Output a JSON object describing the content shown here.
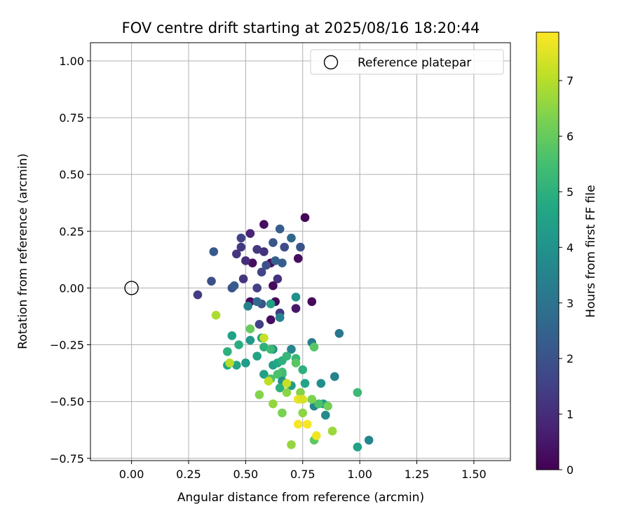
{
  "chart_data": {
    "type": "scatter",
    "title": "FOV centre drift starting at 2025/08/16 18:20:44",
    "xlabel": "Angular distance from reference (arcmin)",
    "ylabel": "Rotation from reference (arcmin)",
    "xlim": [
      -0.18,
      1.66
    ],
    "ylim": [
      -0.76,
      1.08
    ],
    "xticks": [
      "0.00",
      "0.25",
      "0.50",
      "0.75",
      "1.00",
      "1.25",
      "1.50"
    ],
    "xtick_values": [
      0,
      0.25,
      0.5,
      0.75,
      1.0,
      1.25,
      1.5
    ],
    "yticks": [
      "1.00",
      "0.75",
      "0.50",
      "0.25",
      "0.00",
      "−0.25",
      "−0.50",
      "−0.75"
    ],
    "ytick_values": [
      1.0,
      0.75,
      0.5,
      0.25,
      0.0,
      -0.25,
      -0.5,
      -0.75
    ],
    "grid": true,
    "legend": {
      "placement": "top-right",
      "entries": [
        {
          "label": "Reference platepar",
          "marker": "open-circle"
        }
      ]
    },
    "reference_point": {
      "x": 0.0,
      "y": 0.0
    },
    "colorbar": {
      "label": "Hours from first FF file",
      "colormap": "viridis",
      "range": [
        0,
        7.87
      ],
      "ticks": [
        "0",
        "1",
        "2",
        "3",
        "4",
        "5",
        "6",
        "7"
      ],
      "tick_values": [
        0,
        1,
        2,
        3,
        4,
        5,
        6,
        7
      ]
    },
    "points": [
      [
        0.76,
        0.31,
        0.1
      ],
      [
        0.58,
        0.28,
        0.3
      ],
      [
        0.52,
        0.24,
        0.8
      ],
      [
        0.61,
        0.11,
        0.2
      ],
      [
        0.73,
        0.13,
        0.3
      ],
      [
        0.53,
        0.11,
        0.3
      ],
      [
        0.58,
        0.16,
        1.1
      ],
      [
        0.62,
        0.01,
        0.2
      ],
      [
        0.79,
        -0.06,
        0.2
      ],
      [
        0.72,
        -0.09,
        0.5
      ],
      [
        0.61,
        -0.14,
        0.3
      ],
      [
        0.52,
        -0.06,
        0.3
      ],
      [
        0.63,
        -0.06,
        0.2
      ],
      [
        0.65,
        -0.11,
        1.3
      ],
      [
        0.48,
        0.22,
        1.5
      ],
      [
        0.48,
        0.18,
        1.3
      ],
      [
        0.5,
        0.12,
        1.0
      ],
      [
        0.46,
        0.15,
        1.2
      ],
      [
        0.49,
        0.04,
        1.2
      ],
      [
        0.55,
        0.17,
        1.3
      ],
      [
        0.57,
        0.07,
        1.6
      ],
      [
        0.59,
        0.1,
        1.9
      ],
      [
        0.62,
        0.2,
        2.1
      ],
      [
        0.65,
        0.26,
        2.3
      ],
      [
        0.67,
        0.18,
        1.8
      ],
      [
        0.7,
        0.22,
        2.6
      ],
      [
        0.74,
        0.18,
        2.0
      ],
      [
        0.63,
        0.12,
        2.4
      ],
      [
        0.66,
        0.11,
        2.3
      ],
      [
        0.64,
        0.04,
        1.1
      ],
      [
        0.36,
        0.16,
        2.2
      ],
      [
        0.35,
        0.03,
        1.9
      ],
      [
        0.29,
        -0.03,
        1.4
      ],
      [
        0.44,
        0.0,
        2.0
      ],
      [
        0.45,
        0.01,
        2.3
      ],
      [
        0.55,
        0.0,
        1.5
      ],
      [
        0.57,
        -0.07,
        2.0
      ],
      [
        0.56,
        -0.16,
        1.5
      ],
      [
        0.55,
        -0.06,
        2.7
      ],
      [
        0.51,
        -0.08,
        3.5
      ],
      [
        0.61,
        -0.07,
        4.4
      ],
      [
        0.65,
        -0.13,
        3.5
      ],
      [
        0.72,
        -0.04,
        3.9
      ],
      [
        0.91,
        -0.2,
        3.1
      ],
      [
        0.79,
        -0.24,
        3.3
      ],
      [
        0.7,
        -0.27,
        3.6
      ],
      [
        0.62,
        -0.27,
        3.8
      ],
      [
        0.57,
        -0.22,
        4.6
      ],
      [
        0.52,
        -0.23,
        4.2
      ],
      [
        0.47,
        -0.25,
        4.9
      ],
      [
        0.44,
        -0.21,
        4.5
      ],
      [
        0.42,
        -0.28,
        5.0
      ],
      [
        0.42,
        -0.34,
        4.7
      ],
      [
        0.46,
        -0.34,
        4.6
      ],
      [
        0.5,
        -0.33,
        4.3
      ],
      [
        0.55,
        -0.3,
        4.6
      ],
      [
        0.58,
        -0.26,
        5.0
      ],
      [
        0.61,
        -0.27,
        5.3
      ],
      [
        0.62,
        -0.34,
        4.4
      ],
      [
        0.64,
        -0.33,
        4.7
      ],
      [
        0.66,
        -0.32,
        5.0
      ],
      [
        0.68,
        -0.3,
        5.2
      ],
      [
        0.72,
        -0.31,
        5.2
      ],
      [
        0.72,
        -0.33,
        5.8
      ],
      [
        0.75,
        -0.36,
        5.0
      ],
      [
        0.66,
        -0.37,
        5.5
      ],
      [
        0.66,
        -0.38,
        5.4
      ],
      [
        0.64,
        -0.38,
        5.6
      ],
      [
        0.58,
        -0.38,
        4.4
      ],
      [
        0.61,
        -0.4,
        5.6
      ],
      [
        0.66,
        -0.41,
        4.0
      ],
      [
        0.7,
        -0.43,
        4.3
      ],
      [
        0.65,
        -0.44,
        5.0
      ],
      [
        0.76,
        -0.42,
        4.6
      ],
      [
        0.83,
        -0.42,
        3.9
      ],
      [
        0.89,
        -0.39,
        3.5
      ],
      [
        0.8,
        -0.52,
        3.6
      ],
      [
        0.84,
        -0.51,
        4.3
      ],
      [
        0.85,
        -0.56,
        3.7
      ],
      [
        1.04,
        -0.67,
        3.6
      ],
      [
        0.99,
        -0.7,
        4.5
      ],
      [
        0.99,
        -0.46,
        5.3
      ],
      [
        0.82,
        -0.51,
        5.6
      ],
      [
        0.86,
        -0.52,
        6.2
      ],
      [
        0.88,
        -0.63,
        6.7
      ],
      [
        0.8,
        -0.67,
        5.9
      ],
      [
        0.7,
        -0.69,
        6.6
      ],
      [
        0.66,
        -0.55,
        6.3
      ],
      [
        0.75,
        -0.55,
        6.5
      ],
      [
        0.79,
        -0.49,
        6.3
      ],
      [
        0.74,
        -0.46,
        6.4
      ],
      [
        0.68,
        -0.46,
        6.5
      ],
      [
        0.62,
        -0.51,
        6.6
      ],
      [
        0.56,
        -0.47,
        6.4
      ],
      [
        0.37,
        -0.12,
        6.9
      ],
      [
        0.43,
        -0.33,
        7.0
      ],
      [
        0.52,
        -0.18,
        6.0
      ],
      [
        0.58,
        -0.22,
        7.2
      ],
      [
        0.6,
        -0.41,
        7.1
      ],
      [
        0.68,
        -0.42,
        7.2
      ],
      [
        0.73,
        -0.49,
        7.6
      ],
      [
        0.75,
        -0.49,
        7.4
      ],
      [
        0.77,
        -0.6,
        7.8
      ],
      [
        0.73,
        -0.6,
        7.8
      ],
      [
        0.81,
        -0.65,
        7.7
      ],
      [
        0.8,
        -0.26,
        5.8
      ]
    ]
  }
}
